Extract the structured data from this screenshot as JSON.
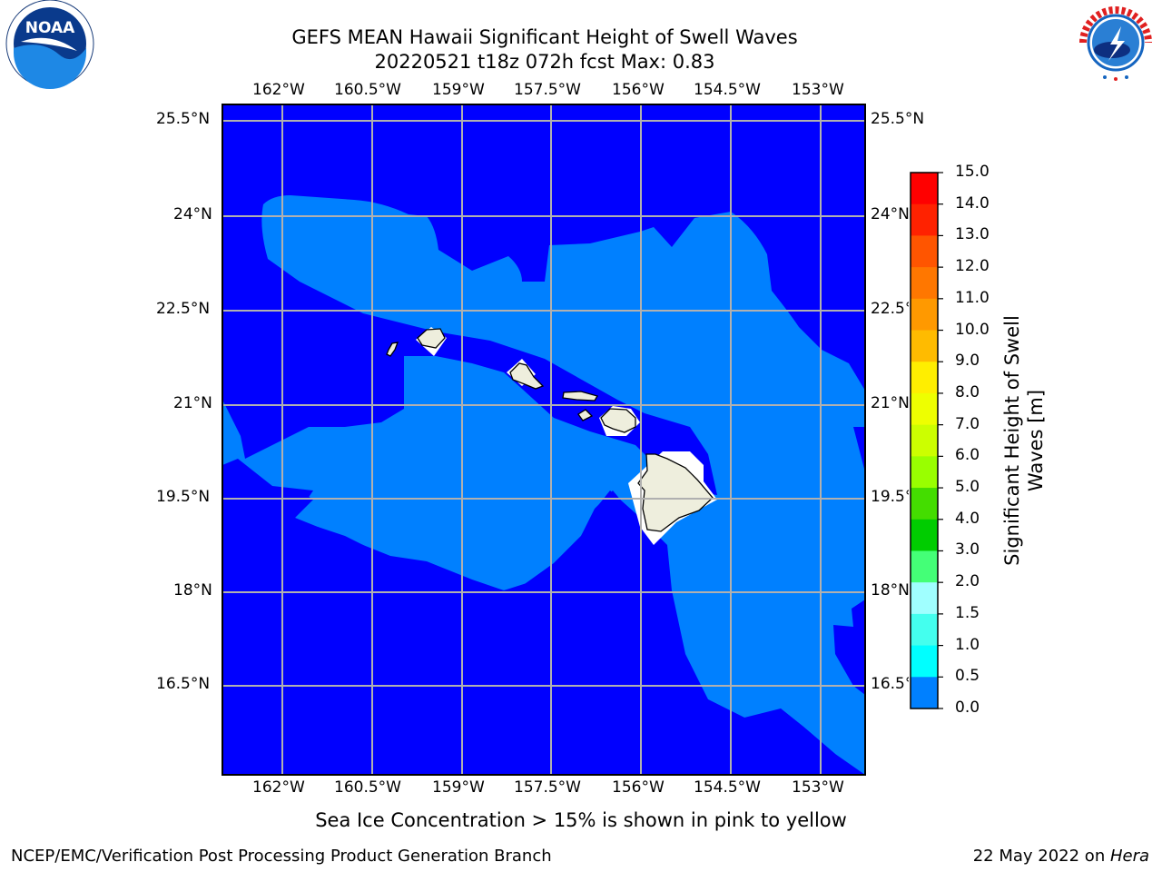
{
  "title": {
    "line1": "GEFS MEAN Hawaii Significant Height of Swell Waves",
    "line2": "20220521 t18z 072h fcst   Max: 0.83"
  },
  "logos": {
    "left": {
      "name": "NOAA",
      "ring_text": "NATIONAL OCEANIC AND ATMOSPHERIC ADMINISTRATION · U.S. DEPARTMENT OF COMMERCE"
    },
    "right": {
      "name": "NATIONAL WEATHER SERVICE"
    }
  },
  "map": {
    "lon_labels": [
      "162°W",
      "160.5°W",
      "159°W",
      "157.5°W",
      "156°W",
      "154.5°W",
      "153°W"
    ],
    "lat_labels": [
      "25.5°N",
      "24°N",
      "22.5°N",
      "21°N",
      "19.5°N",
      "18°N",
      "16.5°N"
    ],
    "colors": {
      "band_0_0_5": "#0000ff",
      "band_0_5_1_0": "#0080ff",
      "land": "#eeeedd",
      "grid": "#b0b0b0"
    }
  },
  "colorbar": {
    "ticks": [
      "15.0",
      "14.0",
      "13.0",
      "12.0",
      "11.0",
      "10.0",
      "9.0",
      "8.0",
      "7.0",
      "6.0",
      "5.0",
      "4.0",
      "3.0",
      "2.0",
      "1.5",
      "1.0",
      "0.5",
      "0.0"
    ],
    "colors": [
      "#ff0000",
      "#ff2000",
      "#ff4000",
      "#ff6000",
      "#ff8000",
      "#ffa000",
      "#ffc000",
      "#ffe000",
      "#ffff00",
      "#e0ff00",
      "#c0ff00",
      "#a0ff00",
      "#60ff20",
      "#00e000",
      "#00ff00",
      "#40ff80",
      "#a0ffff",
      "#60ffff",
      "#00ffff",
      "#00ffff",
      "#0080ff",
      "#0000ff"
    ],
    "label_line1": "Significant Height of Swell",
    "label_line2": "Waves [m]"
  },
  "footer": {
    "note": "Sea Ice Concentration > 15% is shown in pink to yellow",
    "credit": "NCEP/EMC/Verification Post Processing Product Generation Branch",
    "date": "22 May 2022 on ",
    "host": "Hera"
  }
}
